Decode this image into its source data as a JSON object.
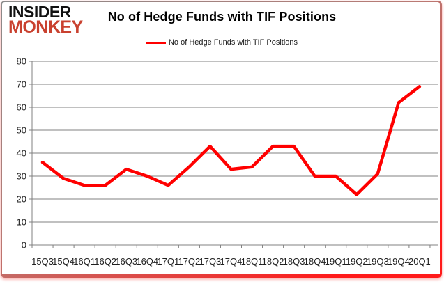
{
  "brand": {
    "line1": "INSIDER",
    "line2": "MONKEY",
    "monkey_color": "#c9412f"
  },
  "header": {
    "title": "No of Hedge Funds with TIF Positions"
  },
  "legend": {
    "label": "No of Hedge Funds with TIF Positions",
    "line_color": "#ff0000"
  },
  "chart_data": {
    "type": "line",
    "title": "No of Hedge Funds with TIF Positions",
    "categories": [
      "15Q3",
      "15Q4",
      "16Q1",
      "16Q2",
      "16Q3",
      "16Q4",
      "17Q1",
      "17Q2",
      "17Q3",
      "17Q4",
      "18Q1",
      "18Q2",
      "18Q3",
      "18Q4",
      "19Q1",
      "19Q2",
      "19Q3",
      "19Q4",
      "20Q1"
    ],
    "series": [
      {
        "name": "No of Hedge Funds with TIF Positions",
        "color": "#ff0000",
        "values": [
          36,
          29,
          26,
          26,
          33,
          30,
          26,
          34,
          43,
          33,
          34,
          43,
          43,
          30,
          30,
          22,
          31,
          62,
          69
        ]
      }
    ],
    "xlabel": "",
    "ylabel": "",
    "ylim": [
      0,
      80
    ],
    "yticks": [
      0,
      10,
      20,
      30,
      40,
      50,
      60,
      70,
      80
    ],
    "grid": "horizontal",
    "legend_position": "top",
    "gridline_color": "#808080",
    "axis_color": "#808080",
    "tick_label_color": "#1f1f1f"
  }
}
